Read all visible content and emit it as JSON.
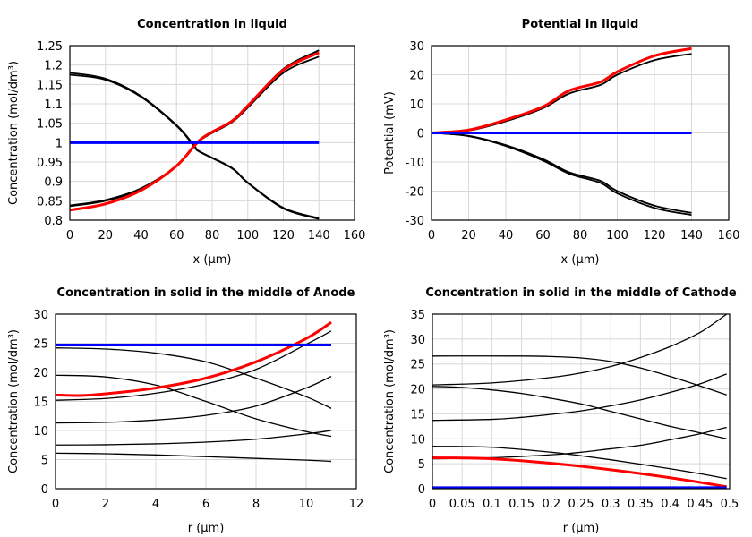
{
  "chart_data": [
    {
      "type": "line",
      "title": "Concentration in liquid",
      "xlabel": "x (µm)",
      "ylabel": "Concentration (mol/dm³)",
      "xlim": [
        0,
        160
      ],
      "ylim": [
        0.8,
        1.25
      ],
      "xticks": [
        0,
        20,
        40,
        60,
        80,
        100,
        120,
        140,
        160
      ],
      "yticks": [
        0.8,
        0.85,
        0.9,
        0.95,
        1,
        1.05,
        1.1,
        1.15,
        1.2,
        1.25
      ],
      "grid": true,
      "series": [
        {
          "color": "#000000",
          "x": [
            0,
            20,
            40,
            60,
            70,
            73,
            91,
            100,
            120,
            140
          ],
          "y": [
            1.18,
            1.165,
            1.12,
            1.045,
            0.992,
            0.977,
            0.935,
            0.897,
            0.832,
            0.805
          ]
        },
        {
          "color": "#000000",
          "x": [
            0,
            20,
            40,
            60,
            70,
            73,
            91,
            100,
            120,
            140
          ],
          "y": [
            1.175,
            1.162,
            1.118,
            1.043,
            0.99,
            0.976,
            0.934,
            0.896,
            0.83,
            0.803
          ]
        },
        {
          "color": "#000000",
          "x": [
            0,
            20,
            40,
            60,
            73,
            91,
            100,
            120,
            140
          ],
          "y": [
            0.838,
            0.852,
            0.882,
            0.94,
            1.005,
            1.052,
            1.09,
            1.18,
            1.222
          ]
        },
        {
          "color": "#000000",
          "x": [
            0,
            20,
            40,
            60,
            73,
            91,
            100,
            120,
            140
          ],
          "y": [
            0.836,
            0.85,
            0.88,
            0.94,
            1.008,
            1.056,
            1.095,
            1.19,
            1.238
          ]
        },
        {
          "color": "#ff0000",
          "x": [
            0,
            20,
            40,
            60,
            74,
            91,
            100,
            120,
            140
          ],
          "y": [
            0.826,
            0.842,
            0.877,
            0.94,
            1.01,
            1.055,
            1.095,
            1.187,
            1.232
          ]
        },
        {
          "color": "#0000ff",
          "x": [
            0,
            140
          ],
          "y": [
            1,
            1
          ]
        }
      ]
    },
    {
      "type": "line",
      "title": "Potential in liquid",
      "xlabel": "x (µm)",
      "ylabel": "Potential (mV)",
      "xlim": [
        0,
        160
      ],
      "ylim": [
        -30,
        30
      ],
      "xticks": [
        0,
        20,
        40,
        60,
        80,
        100,
        120,
        140,
        160
      ],
      "yticks": [
        -30,
        -20,
        -10,
        0,
        10,
        20,
        30
      ],
      "grid": true,
      "series": [
        {
          "color": "#000000",
          "x": [
            0,
            20,
            40,
            60,
            74,
            91,
            100,
            120,
            140
          ],
          "y": [
            0,
            0.8,
            4,
            8.5,
            13.5,
            16.5,
            20,
            25,
            27.2
          ]
        },
        {
          "color": "#000000",
          "x": [
            0,
            20,
            40,
            60,
            74,
            91,
            100,
            120,
            140
          ],
          "y": [
            0,
            -1,
            -4.2,
            -9,
            -13.5,
            -16.5,
            -20,
            -25,
            -27.5
          ]
        },
        {
          "color": "#000000",
          "x": [
            0,
            20,
            40,
            60,
            74,
            91,
            100,
            120,
            140
          ],
          "y": [
            0,
            -1.1,
            -4.5,
            -9.5,
            -14,
            -17.2,
            -20.8,
            -25.8,
            -28.2
          ]
        },
        {
          "color": "#ff0000",
          "x": [
            0,
            20,
            40,
            60,
            74,
            91,
            100,
            120,
            140
          ],
          "y": [
            0,
            1,
            4.5,
            9,
            14.5,
            17.5,
            21,
            26.5,
            29
          ]
        },
        {
          "color": "#0000ff",
          "x": [
            0,
            140
          ],
          "y": [
            0,
            0
          ]
        }
      ]
    },
    {
      "type": "line",
      "title": "Concentration in solid in the middle of Anode",
      "xlabel": "r (µm)",
      "ylabel": "Concentration (mol/dm³)",
      "xlim": [
        0,
        12
      ],
      "ylim": [
        0,
        30
      ],
      "xticks": [
        0,
        2,
        4,
        6,
        8,
        10,
        12
      ],
      "yticks": [
        0,
        5,
        10,
        15,
        20,
        25,
        30
      ],
      "grid": true,
      "series": [
        {
          "color": "#000000",
          "x": [
            0,
            2,
            4,
            6,
            8,
            10,
            11
          ],
          "y": [
            24.2,
            24,
            23.3,
            21.8,
            19,
            15.8,
            13.8
          ]
        },
        {
          "color": "#000000",
          "x": [
            0,
            2,
            4,
            6,
            8,
            10,
            11
          ],
          "y": [
            15.2,
            15.5,
            16.4,
            18,
            20.5,
            24.8,
            27.1
          ]
        },
        {
          "color": "#000000",
          "x": [
            0,
            2,
            4,
            6,
            8,
            10,
            11
          ],
          "y": [
            19.5,
            19.2,
            17.8,
            15,
            12,
            9.8,
            9
          ]
        },
        {
          "color": "#000000",
          "x": [
            0,
            2,
            4,
            6,
            8,
            10,
            11
          ],
          "y": [
            11.3,
            11.4,
            11.8,
            12.6,
            14.2,
            17.3,
            19.3
          ]
        },
        {
          "color": "#000000",
          "x": [
            0,
            2,
            4,
            6,
            8,
            10,
            11
          ],
          "y": [
            7.5,
            7.55,
            7.7,
            8,
            8.5,
            9.4,
            10
          ]
        },
        {
          "color": "#000000",
          "x": [
            0,
            2,
            4,
            6,
            8,
            10,
            11
          ],
          "y": [
            6.1,
            6,
            5.8,
            5.5,
            5.2,
            4.9,
            4.7
          ]
        },
        {
          "color": "#ff0000",
          "x": [
            0,
            1,
            2,
            4,
            6,
            8,
            10,
            11
          ],
          "y": [
            16.1,
            16,
            16.3,
            17.3,
            19,
            21.8,
            25.8,
            28.6
          ]
        },
        {
          "color": "#0000ff",
          "x": [
            0,
            11
          ],
          "y": [
            24.7,
            24.7
          ]
        }
      ]
    },
    {
      "type": "line",
      "title": "Concentration in solid in the middle of Cathode",
      "xlabel": "r (µm)",
      "ylabel": "Concentration (mol/dm³)",
      "xlim": [
        0,
        0.5
      ],
      "ylim": [
        0,
        35
      ],
      "xticks": [
        0,
        0.05,
        0.1,
        0.15,
        0.2,
        0.25,
        0.3,
        0.35,
        0.4,
        0.45,
        0.5
      ],
      "yticks": [
        0,
        5,
        10,
        15,
        20,
        25,
        30,
        35
      ],
      "grid": true,
      "series": [
        {
          "color": "#000000",
          "x": [
            0,
            0.15,
            0.2,
            0.25,
            0.3,
            0.35,
            0.4,
            0.45,
            0.495
          ],
          "y": [
            26.6,
            26.6,
            26.5,
            26.2,
            25.5,
            24.2,
            22.5,
            20.6,
            18.8
          ]
        },
        {
          "color": "#000000",
          "x": [
            0,
            0.1,
            0.2,
            0.25,
            0.3,
            0.35,
            0.4,
            0.45,
            0.495
          ],
          "y": [
            20.8,
            21.2,
            22.3,
            23.2,
            24.5,
            26.3,
            28.5,
            31.3,
            35
          ]
        },
        {
          "color": "#000000",
          "x": [
            0,
            0.05,
            0.1,
            0.15,
            0.2,
            0.25,
            0.3,
            0.35,
            0.4,
            0.45,
            0.495
          ],
          "y": [
            20.5,
            20.3,
            19.8,
            19.1,
            18.1,
            17,
            15.5,
            14,
            12.5,
            11.2,
            10
          ]
        },
        {
          "color": "#000000",
          "x": [
            0,
            0.1,
            0.15,
            0.2,
            0.25,
            0.3,
            0.35,
            0.4,
            0.45,
            0.495
          ],
          "y": [
            13.7,
            13.9,
            14.3,
            14.9,
            15.6,
            16.6,
            17.8,
            19.3,
            21,
            23
          ]
        },
        {
          "color": "#000000",
          "x": [
            0,
            0.1,
            0.2,
            0.25,
            0.3,
            0.35,
            0.4,
            0.45,
            0.495
          ],
          "y": [
            8.5,
            8.3,
            7.3,
            6.6,
            5.8,
            4.9,
            4,
            3,
            2
          ]
        },
        {
          "color": "#000000",
          "x": [
            0,
            0.1,
            0.2,
            0.25,
            0.3,
            0.35,
            0.4,
            0.45,
            0.495
          ],
          "y": [
            6,
            6.2,
            6.8,
            7.3,
            8,
            8.7,
            9.8,
            11,
            12.3
          ]
        },
        {
          "color": "#ff0000",
          "x": [
            0,
            0.1,
            0.2,
            0.3,
            0.4,
            0.495
          ],
          "y": [
            6.2,
            6,
            5.1,
            3.8,
            2.2,
            0.4
          ]
        },
        {
          "color": "#0000ff",
          "x": [
            0,
            0.495
          ],
          "y": [
            0.2,
            0.2
          ]
        }
      ]
    }
  ]
}
